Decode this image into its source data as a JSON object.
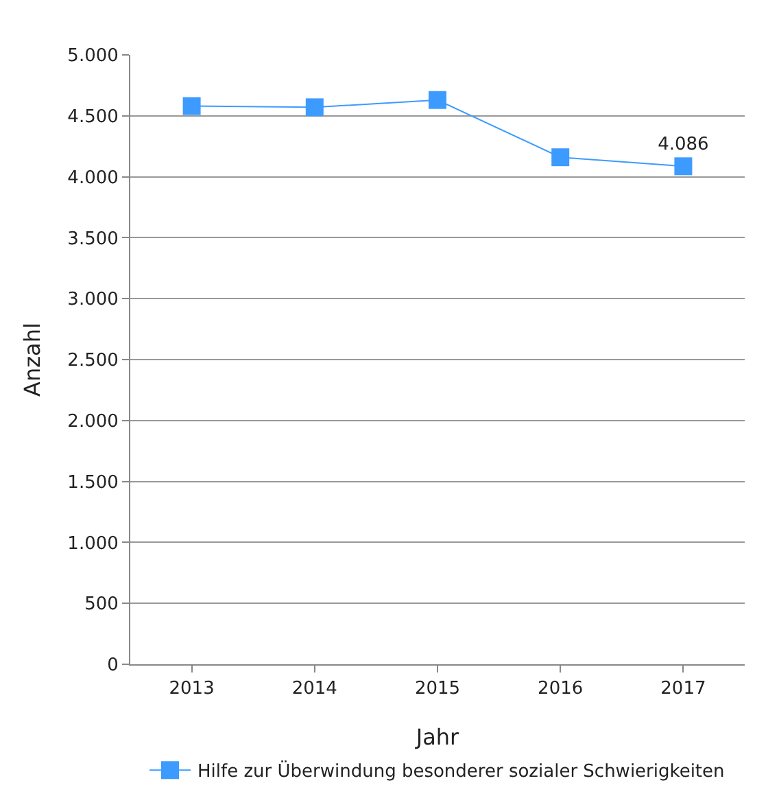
{
  "chart_data": {
    "type": "line",
    "xlabel": "Jahr",
    "ylabel": "Anzahl",
    "categories": [
      "2013",
      "2014",
      "2015",
      "2016",
      "2017"
    ],
    "series": [
      {
        "name": "Hilfe zur Überwindung besonderer sozialer Schwierigkeiten",
        "color": "#3d9bff",
        "values": [
          4580,
          4570,
          4630,
          4160,
          4086
        ],
        "value_labels": [
          null,
          null,
          null,
          null,
          "4.086"
        ]
      }
    ],
    "ylim": [
      0,
      5000
    ],
    "yticks": [
      {
        "value": 0,
        "label": "0"
      },
      {
        "value": 500,
        "label": "500"
      },
      {
        "value": 1000,
        "label": "1.000"
      },
      {
        "value": 1500,
        "label": "1.500"
      },
      {
        "value": 2000,
        "label": "2.000"
      },
      {
        "value": 2500,
        "label": "2.500"
      },
      {
        "value": 3000,
        "label": "3.000"
      },
      {
        "value": 3500,
        "label": "3.500"
      },
      {
        "value": 4000,
        "label": "4.000"
      },
      {
        "value": 4500,
        "label": "4.500"
      },
      {
        "value": 5000,
        "label": "5.000"
      }
    ],
    "grid": "y",
    "legend": "bottom",
    "marker": "square",
    "line_style": "solid"
  }
}
